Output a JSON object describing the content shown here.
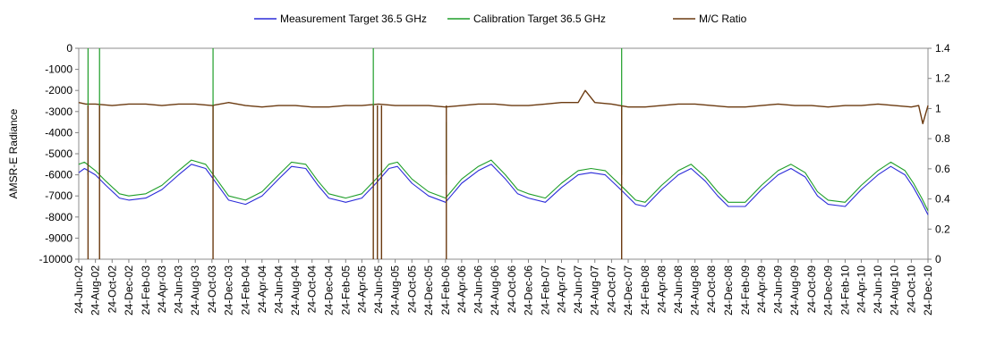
{
  "chart_data": {
    "type": "line",
    "title": "",
    "xlabel": "",
    "ylabel": "AMSR-E Radiance",
    "y2label": "",
    "ylim": [
      -10000,
      0
    ],
    "y2lim": [
      0,
      1.4
    ],
    "yticks": [
      0,
      -1000,
      -2000,
      -3000,
      -4000,
      -5000,
      -6000,
      -7000,
      -8000,
      -9000,
      -10000
    ],
    "y2ticks": [
      0,
      0.2,
      0.4,
      0.6,
      0.8,
      1,
      1.2,
      1.4
    ],
    "y2ticklabels": [
      "0",
      "0.2",
      "0.4",
      "0.6",
      "0.8",
      "1",
      "1.2",
      "1.4"
    ],
    "grid": false,
    "legend": "top",
    "xrange": [
      "2002-06-24",
      "2010-12-24"
    ],
    "x_ticks": [
      {
        "date": "2002-06-24",
        "label": "24-Jun-02"
      },
      {
        "date": "2002-08-24",
        "label": "24-Aug-02"
      },
      {
        "date": "2002-10-24",
        "label": "24-Oct-02"
      },
      {
        "date": "2002-12-24",
        "label": "24-Dec-02"
      },
      {
        "date": "2003-02-24",
        "label": "24-Feb-03"
      },
      {
        "date": "2003-04-24",
        "label": "24-Apr-03"
      },
      {
        "date": "2003-06-24",
        "label": "24-Jun-03"
      },
      {
        "date": "2003-08-24",
        "label": "24-Aug-03"
      },
      {
        "date": "2003-10-24",
        "label": "24-Oct-03"
      },
      {
        "date": "2003-12-24",
        "label": "24-Dec-03"
      },
      {
        "date": "2004-02-24",
        "label": "24-Feb-04"
      },
      {
        "date": "2004-04-24",
        "label": "24-Apr-04"
      },
      {
        "date": "2004-06-24",
        "label": "24-Jun-04"
      },
      {
        "date": "2004-08-24",
        "label": "24-Aug-04"
      },
      {
        "date": "2004-10-24",
        "label": "24-Oct-04"
      },
      {
        "date": "2004-12-24",
        "label": "24-Dec-04"
      },
      {
        "date": "2005-02-24",
        "label": "24-Feb-05"
      },
      {
        "date": "2005-04-24",
        "label": "24-Apr-05"
      },
      {
        "date": "2005-06-24",
        "label": "24-Jun-05"
      },
      {
        "date": "2005-08-24",
        "label": "24-Aug-05"
      },
      {
        "date": "2005-10-24",
        "label": "24-Oct-05"
      },
      {
        "date": "2005-12-24",
        "label": "24-Dec-05"
      },
      {
        "date": "2006-02-24",
        "label": "24-Feb-06"
      },
      {
        "date": "2006-04-24",
        "label": "24-Apr-06"
      },
      {
        "date": "2006-06-24",
        "label": "24-Jun-06"
      },
      {
        "date": "2006-08-24",
        "label": "24-Aug-06"
      },
      {
        "date": "2006-10-24",
        "label": "24-Oct-06"
      },
      {
        "date": "2006-12-24",
        "label": "24-Dec-06"
      },
      {
        "date": "2007-02-24",
        "label": "24-Feb-07"
      },
      {
        "date": "2007-04-24",
        "label": "24-Apr-07"
      },
      {
        "date": "2007-06-24",
        "label": "24-Jun-07"
      },
      {
        "date": "2007-08-24",
        "label": "24-Aug-07"
      },
      {
        "date": "2007-10-24",
        "label": "24-Oct-07"
      },
      {
        "date": "2007-12-24",
        "label": "24-Dec-07"
      },
      {
        "date": "2008-02-24",
        "label": "24-Feb-08"
      },
      {
        "date": "2008-04-24",
        "label": "24-Apr-08"
      },
      {
        "date": "2008-06-24",
        "label": "24-Jun-08"
      },
      {
        "date": "2008-08-24",
        "label": "24-Aug-08"
      },
      {
        "date": "2008-10-24",
        "label": "24-Oct-08"
      },
      {
        "date": "2008-12-24",
        "label": "24-Dec-08"
      },
      {
        "date": "2009-02-24",
        "label": "24-Feb-09"
      },
      {
        "date": "2009-04-24",
        "label": "24-Apr-09"
      },
      {
        "date": "2009-06-24",
        "label": "24-Jun-09"
      },
      {
        "date": "2009-08-24",
        "label": "24-Aug-09"
      },
      {
        "date": "2009-10-24",
        "label": "24-Oct-09"
      },
      {
        "date": "2009-12-24",
        "label": "24-Dec-09"
      },
      {
        "date": "2010-02-24",
        "label": "24-Feb-10"
      },
      {
        "date": "2010-04-24",
        "label": "24-Apr-10"
      },
      {
        "date": "2010-06-24",
        "label": "24-Jun-10"
      },
      {
        "date": "2010-08-24",
        "label": "24-Aug-10"
      },
      {
        "date": "2010-10-24",
        "label": "24-Oct-10"
      },
      {
        "date": "2010-12-24",
        "label": "24-Dec-10"
      }
    ],
    "series": [
      {
        "name": "Measurement Target 36.5 GHz",
        "color": "#2b2bd9",
        "axis": "left",
        "x": [
          "2002-06-24",
          "2002-07-15",
          "2002-08-24",
          "2002-10-01",
          "2002-11-20",
          "2002-12-24",
          "2003-02-24",
          "2003-04-24",
          "2003-06-24",
          "2003-08-10",
          "2003-10-01",
          "2003-11-15",
          "2003-12-24",
          "2004-02-24",
          "2004-04-24",
          "2004-06-24",
          "2004-08-10",
          "2004-10-01",
          "2004-11-15",
          "2004-12-24",
          "2005-02-24",
          "2005-04-24",
          "2005-06-15",
          "2005-08-01",
          "2005-09-01",
          "2005-10-24",
          "2005-12-24",
          "2006-02-24",
          "2006-04-24",
          "2006-06-24",
          "2006-08-10",
          "2006-10-01",
          "2006-11-15",
          "2006-12-24",
          "2007-02-24",
          "2007-04-24",
          "2007-06-24",
          "2007-08-10",
          "2007-10-01",
          "2007-12-05",
          "2008-01-20",
          "2008-02-24",
          "2008-04-24",
          "2008-06-24",
          "2008-08-10",
          "2008-10-01",
          "2008-11-15",
          "2008-12-24",
          "2009-02-24",
          "2009-04-24",
          "2009-06-24",
          "2009-08-10",
          "2009-10-01",
          "2009-11-15",
          "2009-12-24",
          "2010-02-24",
          "2010-04-24",
          "2010-06-24",
          "2010-08-10",
          "2010-10-01",
          "2010-11-01",
          "2010-12-01",
          "2010-12-24"
        ],
        "y": [
          -5900,
          -5700,
          -6000,
          -6500,
          -7100,
          -7200,
          -7100,
          -6700,
          -6000,
          -5500,
          -5700,
          -6500,
          -7200,
          -7400,
          -7000,
          -6200,
          -5600,
          -5700,
          -6500,
          -7100,
          -7300,
          -7100,
          -6400,
          -5700,
          -5600,
          -6400,
          -7000,
          -7300,
          -6400,
          -5800,
          -5500,
          -6200,
          -6900,
          -7100,
          -7300,
          -6600,
          -6000,
          -5900,
          -6000,
          -6800,
          -7400,
          -7500,
          -6700,
          -6000,
          -5700,
          -6300,
          -7000,
          -7500,
          -7500,
          -6700,
          -6000,
          -5700,
          -6100,
          -7000,
          -7400,
          -7500,
          -6700,
          -6000,
          -5600,
          -6000,
          -6600,
          -7300,
          -7900
        ]
      },
      {
        "name": "Calibration Target 36.5 GHz",
        "color": "#1e9e28",
        "axis": "left",
        "x": [
          "2002-06-24",
          "2002-07-15",
          "2002-08-24",
          "2002-10-01",
          "2002-11-20",
          "2002-12-24",
          "2003-02-24",
          "2003-04-24",
          "2003-06-24",
          "2003-08-10",
          "2003-10-01",
          "2003-11-15",
          "2003-12-24",
          "2004-02-24",
          "2004-04-24",
          "2004-06-24",
          "2004-08-10",
          "2004-10-01",
          "2004-11-15",
          "2004-12-24",
          "2005-02-24",
          "2005-04-24",
          "2005-06-15",
          "2005-08-01",
          "2005-09-01",
          "2005-10-24",
          "2005-12-24",
          "2006-02-24",
          "2006-04-24",
          "2006-06-24",
          "2006-08-10",
          "2006-10-01",
          "2006-11-15",
          "2006-12-24",
          "2007-02-24",
          "2007-04-24",
          "2007-06-24",
          "2007-08-10",
          "2007-10-01",
          "2007-12-05",
          "2008-01-20",
          "2008-02-24",
          "2008-04-24",
          "2008-06-24",
          "2008-08-10",
          "2008-10-01",
          "2008-11-15",
          "2008-12-24",
          "2009-02-24",
          "2009-04-24",
          "2009-06-24",
          "2009-08-10",
          "2009-10-01",
          "2009-11-15",
          "2009-12-24",
          "2010-02-24",
          "2010-04-24",
          "2010-06-24",
          "2010-08-10",
          "2010-10-01",
          "2010-11-01",
          "2010-12-01",
          "2010-12-24"
        ],
        "y": [
          -5500,
          -5400,
          -5800,
          -6300,
          -6900,
          -7000,
          -6900,
          -6500,
          -5800,
          -5300,
          -5500,
          -6300,
          -7000,
          -7200,
          -6800,
          -6000,
          -5400,
          -5500,
          -6300,
          -6900,
          -7100,
          -6900,
          -6200,
          -5500,
          -5400,
          -6200,
          -6800,
          -7100,
          -6200,
          -5600,
          -5300,
          -6000,
          -6700,
          -6900,
          -7100,
          -6400,
          -5800,
          -5700,
          -5800,
          -6600,
          -7200,
          -7300,
          -6500,
          -5800,
          -5500,
          -6100,
          -6800,
          -7300,
          -7300,
          -6500,
          -5800,
          -5500,
          -5900,
          -6800,
          -7200,
          -7300,
          -6500,
          -5800,
          -5400,
          -5800,
          -6400,
          -7100,
          -7700
        ]
      },
      {
        "name": "M/C Ratio",
        "color": "#6b3a10",
        "axis": "right",
        "x": [
          "2002-06-24",
          "2002-07-20",
          "2002-08-24",
          "2002-10-24",
          "2002-12-24",
          "2003-02-24",
          "2003-04-24",
          "2003-06-24",
          "2003-08-24",
          "2003-10-24",
          "2003-12-24",
          "2004-02-24",
          "2004-04-24",
          "2004-06-24",
          "2004-08-24",
          "2004-10-24",
          "2004-12-24",
          "2005-02-24",
          "2005-04-24",
          "2005-06-24",
          "2005-08-24",
          "2005-10-24",
          "2005-12-24",
          "2006-02-24",
          "2006-04-24",
          "2006-06-24",
          "2006-08-24",
          "2006-10-24",
          "2006-12-24",
          "2007-02-24",
          "2007-04-24",
          "2007-06-24",
          "2007-07-20",
          "2007-08-24",
          "2007-10-24",
          "2007-12-24",
          "2008-02-24",
          "2008-04-24",
          "2008-06-24",
          "2008-08-24",
          "2008-10-24",
          "2008-12-24",
          "2009-02-24",
          "2009-04-24",
          "2009-06-24",
          "2009-08-24",
          "2009-10-24",
          "2009-12-24",
          "2010-02-24",
          "2010-04-24",
          "2010-06-24",
          "2010-08-24",
          "2010-10-24",
          "2010-11-20",
          "2010-12-05",
          "2010-12-24"
        ],
        "y": [
          1.04,
          1.03,
          1.03,
          1.02,
          1.03,
          1.03,
          1.02,
          1.03,
          1.03,
          1.02,
          1.04,
          1.02,
          1.01,
          1.02,
          1.02,
          1.01,
          1.01,
          1.02,
          1.02,
          1.03,
          1.02,
          1.02,
          1.02,
          1.01,
          1.02,
          1.03,
          1.03,
          1.02,
          1.02,
          1.03,
          1.04,
          1.04,
          1.12,
          1.04,
          1.03,
          1.01,
          1.01,
          1.02,
          1.03,
          1.03,
          1.02,
          1.01,
          1.01,
          1.02,
          1.03,
          1.02,
          1.02,
          1.01,
          1.02,
          1.02,
          1.03,
          1.02,
          1.01,
          1.02,
          0.9,
          1.02
        ]
      }
    ],
    "ratio_dropouts": [
      {
        "date": "2002-07-28",
        "value": 0
      },
      {
        "date": "2002-09-08",
        "value": 0
      },
      {
        "date": "2003-10-28",
        "value": 0
      },
      {
        "date": "2005-06-05",
        "value": 0
      },
      {
        "date": "2005-06-20",
        "value": 0
      },
      {
        "date": "2005-07-05",
        "value": 0
      },
      {
        "date": "2006-02-27",
        "value": 0
      },
      {
        "date": "2007-11-30",
        "value": 0
      }
    ],
    "calibration_spikes": [
      {
        "date": "2002-07-28",
        "value": 0
      },
      {
        "date": "2002-09-08",
        "value": 0
      },
      {
        "date": "2003-10-28",
        "value": 0
      },
      {
        "date": "2005-06-05",
        "value": 0
      },
      {
        "date": "2006-02-27",
        "value": -3500
      },
      {
        "date": "2007-11-30",
        "value": 0
      }
    ]
  }
}
